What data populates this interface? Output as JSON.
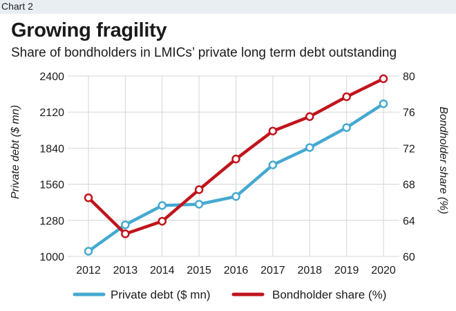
{
  "header": {
    "chart_number": "Chart 2"
  },
  "chart_data": {
    "type": "line",
    "title": "Growing fragility",
    "subtitle": "Share of bondholders in LMICs’ private long term debt outstanding",
    "x": [
      "2012",
      "2013",
      "2014",
      "2015",
      "2016",
      "2017",
      "2018",
      "2019",
      "2020"
    ],
    "y_left": {
      "label": "Private debt ($ mn)",
      "lim": [
        1000,
        2400
      ],
      "ticks": [
        1000,
        1280,
        1560,
        1840,
        2120,
        2400
      ]
    },
    "y_right": {
      "label": "Bondholder share (%)",
      "lim": [
        60,
        80
      ],
      "ticks": [
        60,
        64,
        68,
        72,
        76,
        80
      ]
    },
    "series": [
      {
        "name": "Private debt ($ mn)",
        "axis": "left",
        "color": "#45a9d1",
        "values": [
          1040,
          1245,
          1395,
          1405,
          1465,
          1710,
          1845,
          2000,
          2185
        ]
      },
      {
        "name": "Bondholder share (%)",
        "axis": "right",
        "color": "#c0141c",
        "values": [
          66.5,
          62.5,
          63.9,
          67.4,
          70.8,
          73.9,
          75.5,
          77.7,
          79.7
        ]
      }
    ],
    "grid": true,
    "legend_position": "bottom"
  }
}
